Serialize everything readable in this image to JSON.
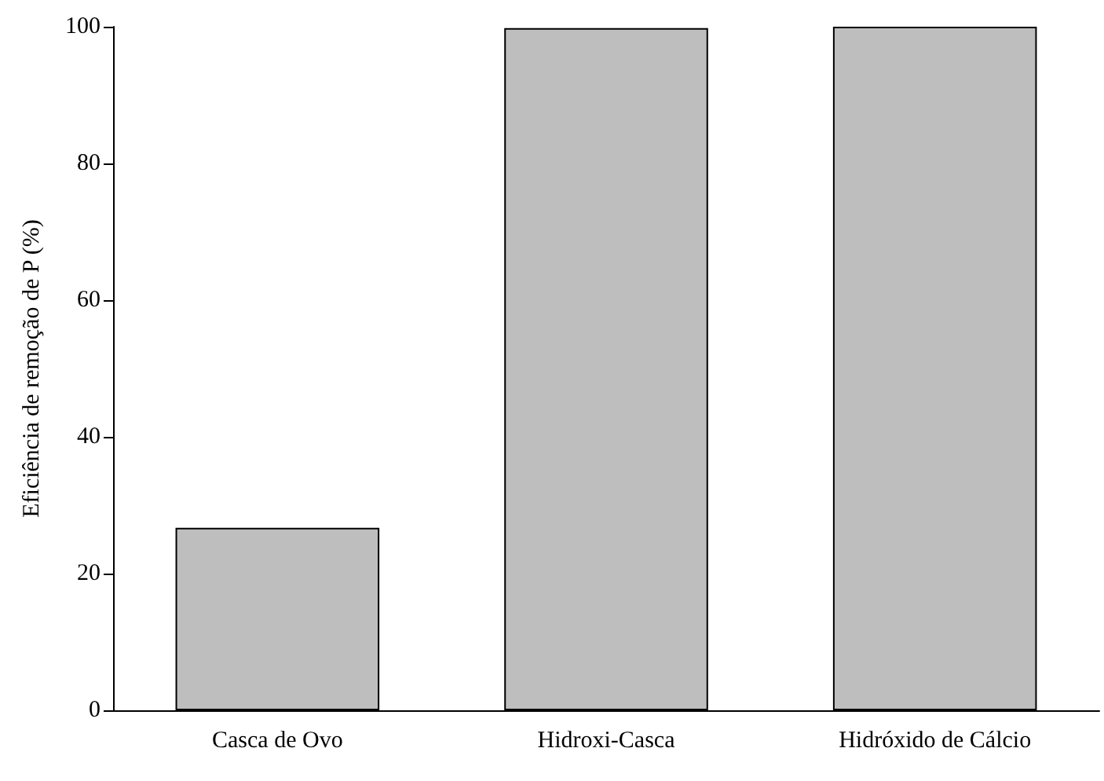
{
  "chart_data": {
    "type": "bar",
    "ylabel": "Eficiência de remoção de P (%)",
    "categories": [
      "Casca de Ovo",
      "Hidroxi-Casca",
      "Hidróxido de Cálcio"
    ],
    "values": [
      26.7,
      99.8,
      100
    ],
    "color": "#bebebe",
    "ylim": [
      0,
      100
    ],
    "yticks": [
      0,
      20,
      40,
      60,
      80,
      100
    ],
    "grid": false
  }
}
